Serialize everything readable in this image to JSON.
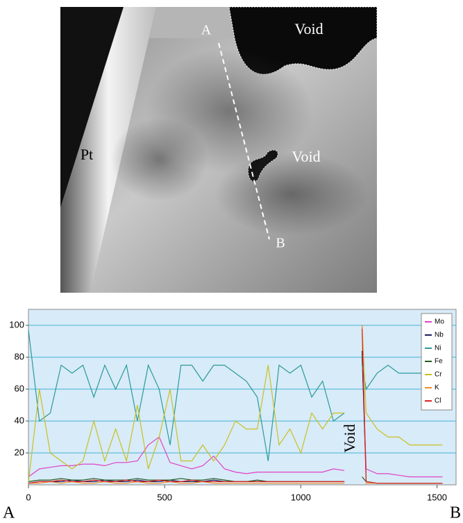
{
  "image": {
    "labels": [
      "Void",
      "Pt",
      "A",
      "B",
      "Void"
    ]
  },
  "chart_data": {
    "type": "line",
    "endpoints": [
      "A",
      "B"
    ],
    "annotations": [
      "Void"
    ],
    "x": [
      0,
      40,
      80,
      120,
      160,
      200,
      240,
      280,
      320,
      360,
      400,
      440,
      480,
      520,
      560,
      600,
      640,
      680,
      720,
      760,
      800,
      840,
      880,
      920,
      960,
      1000,
      1040,
      1080,
      1120,
      1160,
      1200,
      1225,
      1240,
      1280,
      1320,
      1360,
      1400,
      1440,
      1480,
      1520
    ],
    "xlim": [
      0,
      1570
    ],
    "xticks": [
      0,
      500,
      1000,
      1500
    ],
    "ylim": [
      0,
      110
    ],
    "yticks": [
      20,
      40,
      60,
      80,
      100
    ],
    "grid": true,
    "legend": "upper-right",
    "series": [
      {
        "name": "Mo",
        "color": "#e040c8",
        "values": [
          5,
          10,
          11,
          12,
          12,
          13,
          13,
          12,
          14,
          14,
          15,
          25,
          30,
          14,
          12,
          10,
          12,
          18,
          10,
          8,
          7,
          8,
          8,
          8,
          8,
          8,
          8,
          8,
          10,
          9,
          null,
          80,
          10,
          7,
          7,
          6,
          5,
          5,
          5,
          5
        ]
      },
      {
        "name": "Nb",
        "color": "#1a1a5a",
        "values": [
          1,
          2,
          2,
          2,
          3,
          2,
          2,
          3,
          2,
          2,
          3,
          2,
          2,
          3,
          2,
          2,
          2,
          3,
          2,
          2,
          2,
          2,
          2,
          2,
          2,
          2,
          2,
          2,
          2,
          2,
          null,
          84,
          2,
          1,
          1,
          1,
          1,
          1,
          1,
          1
        ]
      },
      {
        "name": "Ni",
        "color": "#2a9a9a",
        "values": [
          97,
          40,
          45,
          75,
          70,
          75,
          55,
          75,
          60,
          75,
          40,
          75,
          60,
          25,
          75,
          75,
          65,
          75,
          75,
          70,
          65,
          55,
          15,
          75,
          70,
          75,
          55,
          65,
          40,
          45,
          null,
          75,
          60,
          70,
          75,
          70,
          70,
          70,
          70,
          70
        ]
      },
      {
        "name": "Fe",
        "color": "#1f5a1f",
        "values": [
          2,
          3,
          3,
          4,
          3,
          3,
          4,
          3,
          3,
          3,
          4,
          3,
          3,
          3,
          4,
          3,
          3,
          4,
          3,
          2,
          2,
          3,
          2,
          2,
          2,
          2,
          2,
          2,
          2,
          2,
          null,
          5,
          2,
          1,
          1,
          1,
          1,
          1,
          1,
          1
        ]
      },
      {
        "name": "Cr",
        "color": "#c8c020",
        "values": [
          2,
          60,
          20,
          15,
          10,
          15,
          40,
          15,
          35,
          15,
          50,
          10,
          30,
          60,
          15,
          15,
          25,
          15,
          25,
          40,
          35,
          35,
          75,
          25,
          35,
          20,
          45,
          35,
          45,
          45,
          null,
          100,
          45,
          35,
          30,
          30,
          25,
          25,
          25,
          25
        ]
      },
      {
        "name": "K",
        "color": "#f08a20",
        "values": [
          1,
          1,
          2,
          1,
          2,
          1,
          1,
          2,
          1,
          1,
          2,
          1,
          1,
          2,
          1,
          1,
          2,
          1,
          1,
          1,
          1,
          1,
          1,
          1,
          1,
          1,
          1,
          1,
          1,
          1,
          null,
          100,
          1,
          1,
          1,
          1,
          1,
          1,
          1,
          1
        ]
      },
      {
        "name": "Cl",
        "color": "#e02020",
        "values": [
          1,
          2,
          2,
          3,
          2,
          2,
          3,
          2,
          2,
          3,
          2,
          2,
          3,
          2,
          2,
          3,
          2,
          2,
          2,
          2,
          2,
          2,
          2,
          2,
          2,
          2,
          2,
          2,
          2,
          2,
          null,
          98,
          2,
          1,
          1,
          1,
          1,
          1,
          1,
          1
        ]
      }
    ]
  }
}
